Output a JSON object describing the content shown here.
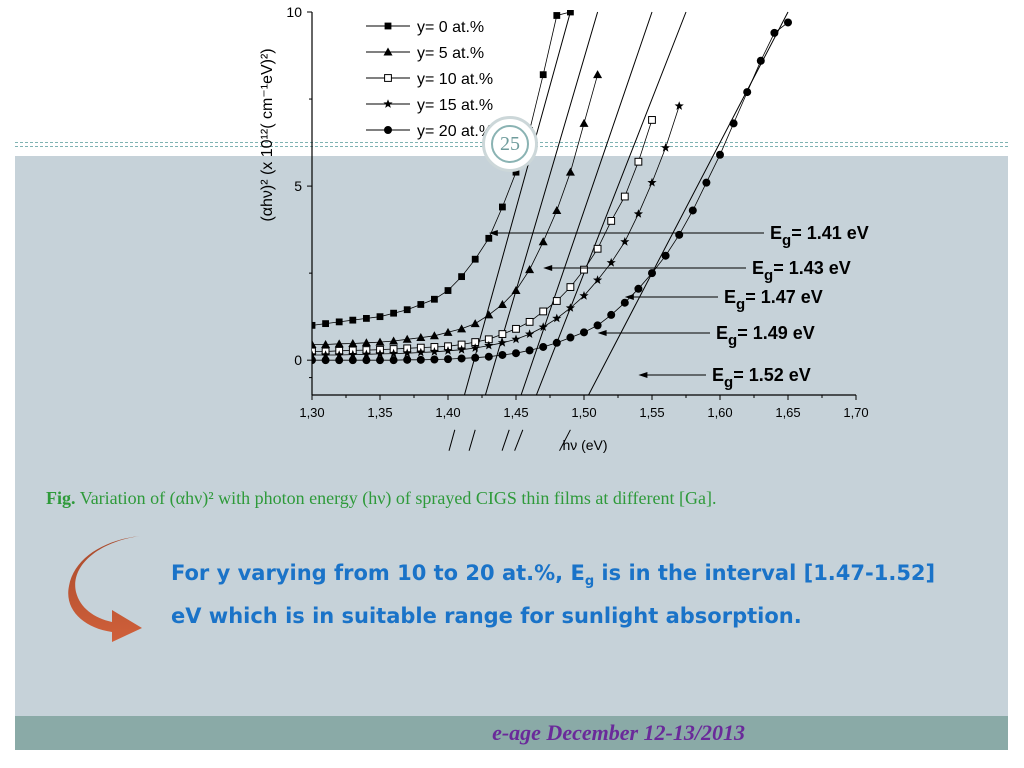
{
  "slide_number": "25",
  "footer": "e-age December 12-13/2013",
  "caption": {
    "prefix": "Fig.",
    "text": "Variation of (αhν)² with photon energy (hν) of sprayed CIGS thin films at different [Ga]."
  },
  "conclusion": {
    "part1": "For y varying from 10 to 20 at.%, E",
    "sub": "g",
    "part2": " is in the interval [1.47-1.52] eV which is in suitable range for sunlight absorption."
  },
  "icons": {
    "arrow": "curved-arrow-icon"
  },
  "colors": {
    "caption": "#2e9a3a",
    "conclusion": "#1a73c8",
    "footer_text": "#6a2a9a",
    "slide_bg": "#c6d2d9",
    "footer_bg": "#8aaaa7"
  },
  "chart_data": {
    "type": "scatter",
    "xlabel": "hν (eV)",
    "ylabel": "(αhν)² (x 10¹²( cm⁻¹eV)²)",
    "xlim": [
      1.3,
      1.7
    ],
    "ylim": [
      -1,
      10
    ],
    "x_ticks": [
      "1,30",
      "1,35",
      "1,40",
      "1,45",
      "1,50",
      "1,55",
      "1,60",
      "1,65",
      "1,70"
    ],
    "y_ticks": [
      "0",
      "5",
      "10"
    ],
    "legend_position": "top-left",
    "series": [
      {
        "name": "y= 0 at.%",
        "marker": "square",
        "x": [
          1.3,
          1.31,
          1.32,
          1.33,
          1.34,
          1.35,
          1.36,
          1.37,
          1.38,
          1.39,
          1.4,
          1.41,
          1.42,
          1.43,
          1.44,
          1.45,
          1.46,
          1.47,
          1.48,
          1.49
        ],
        "y": [
          1.0,
          1.05,
          1.1,
          1.15,
          1.2,
          1.25,
          1.35,
          1.45,
          1.6,
          1.75,
          2.0,
          2.4,
          2.9,
          3.5,
          4.4,
          5.4,
          6.6,
          8.2,
          9.9,
          10.0
        ]
      },
      {
        "name": "y= 5 at.%",
        "marker": "triangle",
        "x": [
          1.3,
          1.31,
          1.32,
          1.33,
          1.34,
          1.35,
          1.36,
          1.37,
          1.38,
          1.39,
          1.4,
          1.41,
          1.42,
          1.43,
          1.44,
          1.45,
          1.46,
          1.47,
          1.48,
          1.49,
          1.5,
          1.51
        ],
        "y": [
          0.45,
          0.45,
          0.47,
          0.48,
          0.5,
          0.52,
          0.55,
          0.6,
          0.65,
          0.7,
          0.8,
          0.9,
          1.05,
          1.3,
          1.6,
          2.0,
          2.6,
          3.4,
          4.3,
          5.4,
          6.8,
          8.2
        ]
      },
      {
        "name": "y= 10 at.%",
        "marker": "open-square",
        "x": [
          1.3,
          1.31,
          1.32,
          1.33,
          1.34,
          1.35,
          1.36,
          1.37,
          1.38,
          1.39,
          1.4,
          1.41,
          1.42,
          1.43,
          1.44,
          1.45,
          1.46,
          1.47,
          1.48,
          1.49,
          1.5,
          1.51,
          1.52,
          1.53,
          1.54,
          1.55
        ],
        "y": [
          0.25,
          0.25,
          0.27,
          0.28,
          0.29,
          0.3,
          0.32,
          0.34,
          0.36,
          0.38,
          0.4,
          0.45,
          0.52,
          0.6,
          0.75,
          0.9,
          1.1,
          1.4,
          1.7,
          2.1,
          2.6,
          3.2,
          4.0,
          4.7,
          5.7,
          6.9
        ]
      },
      {
        "name": "y= 15 at.%",
        "marker": "star",
        "x": [
          1.3,
          1.31,
          1.32,
          1.33,
          1.34,
          1.35,
          1.36,
          1.37,
          1.38,
          1.39,
          1.4,
          1.41,
          1.42,
          1.43,
          1.44,
          1.45,
          1.46,
          1.47,
          1.48,
          1.49,
          1.5,
          1.51,
          1.52,
          1.53,
          1.54,
          1.55,
          1.56,
          1.57
        ],
        "y": [
          0.15,
          0.15,
          0.15,
          0.16,
          0.17,
          0.18,
          0.19,
          0.2,
          0.22,
          0.24,
          0.27,
          0.3,
          0.35,
          0.42,
          0.5,
          0.6,
          0.75,
          0.95,
          1.2,
          1.5,
          1.85,
          2.3,
          2.8,
          3.4,
          4.2,
          5.1,
          6.1,
          7.3
        ]
      },
      {
        "name": "y= 20 at.%",
        "marker": "circle",
        "x": [
          1.3,
          1.31,
          1.32,
          1.33,
          1.34,
          1.35,
          1.36,
          1.37,
          1.38,
          1.39,
          1.4,
          1.41,
          1.42,
          1.43,
          1.44,
          1.45,
          1.46,
          1.47,
          1.48,
          1.49,
          1.5,
          1.51,
          1.52,
          1.53,
          1.54,
          1.55,
          1.56,
          1.57,
          1.58,
          1.59,
          1.6,
          1.61,
          1.62,
          1.63,
          1.64,
          1.65
        ],
        "y": [
          0.0,
          0.0,
          0.0,
          0.0,
          0.0,
          0.0,
          0.0,
          0.01,
          0.01,
          0.02,
          0.03,
          0.05,
          0.07,
          0.1,
          0.15,
          0.2,
          0.28,
          0.38,
          0.5,
          0.65,
          0.8,
          1.0,
          1.3,
          1.65,
          2.05,
          2.5,
          3.0,
          3.6,
          4.3,
          5.1,
          5.9,
          6.8,
          7.7,
          8.6,
          9.4,
          9.7
        ]
      }
    ],
    "annotations": [
      {
        "label": "E",
        "sub": "g",
        "value": "= 1.41 eV",
        "point": [
          1.43,
          3.5
        ]
      },
      {
        "label": "E",
        "sub": "g",
        "value": "= 1.43 eV",
        "point": [
          1.47,
          2.5
        ]
      },
      {
        "label": "E",
        "sub": "g",
        "value": "= 1.47 eV",
        "point": [
          1.53,
          1.65
        ]
      },
      {
        "label": "E",
        "sub": "g",
        "value": "= 1.49 eV",
        "point": [
          1.51,
          0.55
        ]
      },
      {
        "label": "E",
        "sub": "g",
        "value": "= 1.52 eV",
        "point": [
          1.54,
          -0.6
        ]
      }
    ],
    "tangents": [
      {
        "x": [
          1.405,
          1.49
        ],
        "y": [
          -2.0,
          10.0
        ]
      },
      {
        "x": [
          1.42,
          1.51
        ],
        "y": [
          -2.0,
          10.0
        ]
      },
      {
        "x": [
          1.445,
          1.55
        ],
        "y": [
          -2.0,
          10.0
        ]
      },
      {
        "x": [
          1.455,
          1.575
        ],
        "y": [
          -2.0,
          10.0
        ]
      },
      {
        "x": [
          1.49,
          1.65
        ],
        "y": [
          -2.0,
          10.0
        ]
      }
    ]
  }
}
